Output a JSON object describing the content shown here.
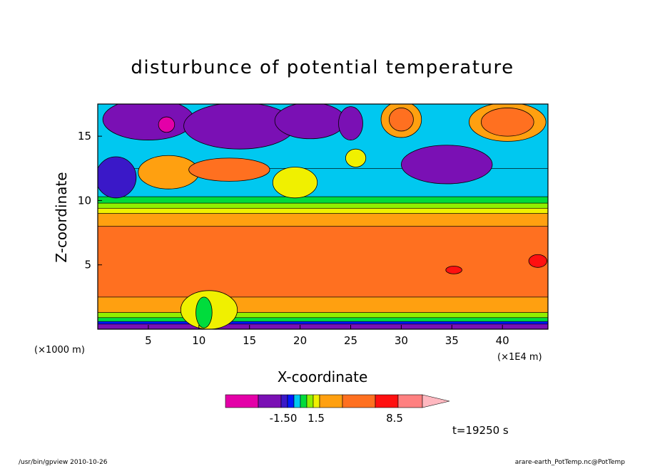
{
  "chart_data": {
    "type": "heatmap",
    "title": "disturbunce of potential temperature",
    "xlabel": "X-coordinate",
    "ylabel": "Z-coordinate",
    "x_unit_label": "(×1000 m)",
    "x_unit_label_2": "(×1E4 m)",
    "xlim": [
      0,
      44.5
    ],
    "ylim": [
      0,
      17.5
    ],
    "x_ticks": [
      "5",
      "10",
      "15",
      "20",
      "25",
      "30",
      "35",
      "40"
    ],
    "y_ticks": [
      "5",
      "10",
      "15"
    ],
    "x_tick_values": [
      5,
      10,
      15,
      20,
      25,
      30,
      35,
      40
    ],
    "y_tick_values": [
      5,
      10,
      15
    ],
    "legend": {
      "position": "bottom",
      "labels": [
        "-1.50",
        "1.5",
        "8.5"
      ],
      "colors": [
        "#e400a8",
        "#7a10b4",
        "#3a18c8",
        "#0018ff",
        "#00c8f0",
        "#00dc3c",
        "#90f000",
        "#f0f000",
        "#ffa010",
        "#ff7020",
        "#ff1010",
        "#ff8080",
        "#ffb8c0"
      ]
    },
    "time_label": "t=19250 s",
    "bands": [
      {
        "z": [
          0.0,
          0.4
        ],
        "color": "#7a10b4"
      },
      {
        "z": [
          0.4,
          0.6
        ],
        "color": "#0018ff"
      },
      {
        "z": [
          0.6,
          0.9
        ],
        "color": "#00dc3c"
      },
      {
        "z": [
          0.9,
          1.3
        ],
        "color": "#90f000"
      },
      {
        "z": [
          1.3,
          2.5
        ],
        "color": "#ffa010"
      },
      {
        "z": [
          2.5,
          8.0
        ],
        "color": "#ff7020"
      },
      {
        "z": [
          8.0,
          9.0
        ],
        "color": "#ffa010"
      },
      {
        "z": [
          9.0,
          9.4
        ],
        "color": "#f0f000"
      },
      {
        "z": [
          9.4,
          9.8
        ],
        "color": "#90f000"
      },
      {
        "z": [
          9.8,
          10.3
        ],
        "color": "#00dc3c"
      },
      {
        "z": [
          10.3,
          12.5
        ],
        "color": "#00c8f0"
      },
      {
        "z": [
          12.5,
          17.5
        ],
        "color": "#00c8f0"
      }
    ],
    "features": [
      {
        "kind": "blob",
        "x": 5.0,
        "z": 16.3,
        "rx": 4.5,
        "rz": 1.6,
        "color": "#7a10b4"
      },
      {
        "kind": "blob",
        "x": 6.8,
        "z": 15.9,
        "rx": 0.8,
        "rz": 0.6,
        "color": "#e400a8"
      },
      {
        "kind": "blob",
        "x": 14.0,
        "z": 15.8,
        "rx": 5.5,
        "rz": 1.8,
        "color": "#7a10b4"
      },
      {
        "kind": "blob",
        "x": 21.0,
        "z": 16.2,
        "rx": 3.5,
        "rz": 1.4,
        "color": "#7a10b4"
      },
      {
        "kind": "blob",
        "x": 25.0,
        "z": 16.0,
        "rx": 1.2,
        "rz": 1.3,
        "color": "#7a10b4"
      },
      {
        "kind": "blob",
        "x": 30.0,
        "z": 16.3,
        "rx": 2.0,
        "rz": 1.4,
        "color": "#ffa010"
      },
      {
        "kind": "blob",
        "x": 30.0,
        "z": 16.3,
        "rx": 1.2,
        "rz": 0.9,
        "color": "#ff7020"
      },
      {
        "kind": "blob",
        "x": 34.5,
        "z": 12.8,
        "rx": 4.5,
        "rz": 1.5,
        "color": "#7a10b4"
      },
      {
        "kind": "blob",
        "x": 40.5,
        "z": 16.1,
        "rx": 3.8,
        "rz": 1.5,
        "color": "#ffa010"
      },
      {
        "kind": "blob",
        "x": 40.5,
        "z": 16.1,
        "rx": 2.6,
        "rz": 1.1,
        "color": "#ff7020"
      },
      {
        "kind": "blob",
        "x": 1.8,
        "z": 11.8,
        "rx": 2.0,
        "rz": 1.6,
        "color": "#3a18c8"
      },
      {
        "kind": "blob",
        "x": 7.0,
        "z": 12.2,
        "rx": 3.0,
        "rz": 1.3,
        "color": "#ffa010"
      },
      {
        "kind": "blob",
        "x": 13.0,
        "z": 12.4,
        "rx": 4.0,
        "rz": 0.9,
        "color": "#ff7020"
      },
      {
        "kind": "blob",
        "x": 19.5,
        "z": 11.4,
        "rx": 2.2,
        "rz": 1.2,
        "color": "#f0f000"
      },
      {
        "kind": "blob",
        "x": 25.5,
        "z": 13.3,
        "rx": 1.0,
        "rz": 0.7,
        "color": "#f0f000"
      },
      {
        "kind": "blob",
        "x": 35.2,
        "z": 4.6,
        "rx": 0.8,
        "rz": 0.3,
        "color": "#ff1010"
      },
      {
        "kind": "blob",
        "x": 43.5,
        "z": 5.3,
        "rx": 0.9,
        "rz": 0.5,
        "color": "#ff1010"
      },
      {
        "kind": "blob",
        "x": 11.0,
        "z": 1.5,
        "rx": 2.8,
        "rz": 1.5,
        "color": "#f0f000"
      },
      {
        "kind": "blob",
        "x": 10.5,
        "z": 1.3,
        "rx": 0.8,
        "rz": 1.2,
        "color": "#00dc3c"
      }
    ]
  },
  "footer": {
    "left": "/usr/bin/gpview   2010-10-26",
    "right": "arare-earth_PotTemp.nc@PotTemp"
  }
}
